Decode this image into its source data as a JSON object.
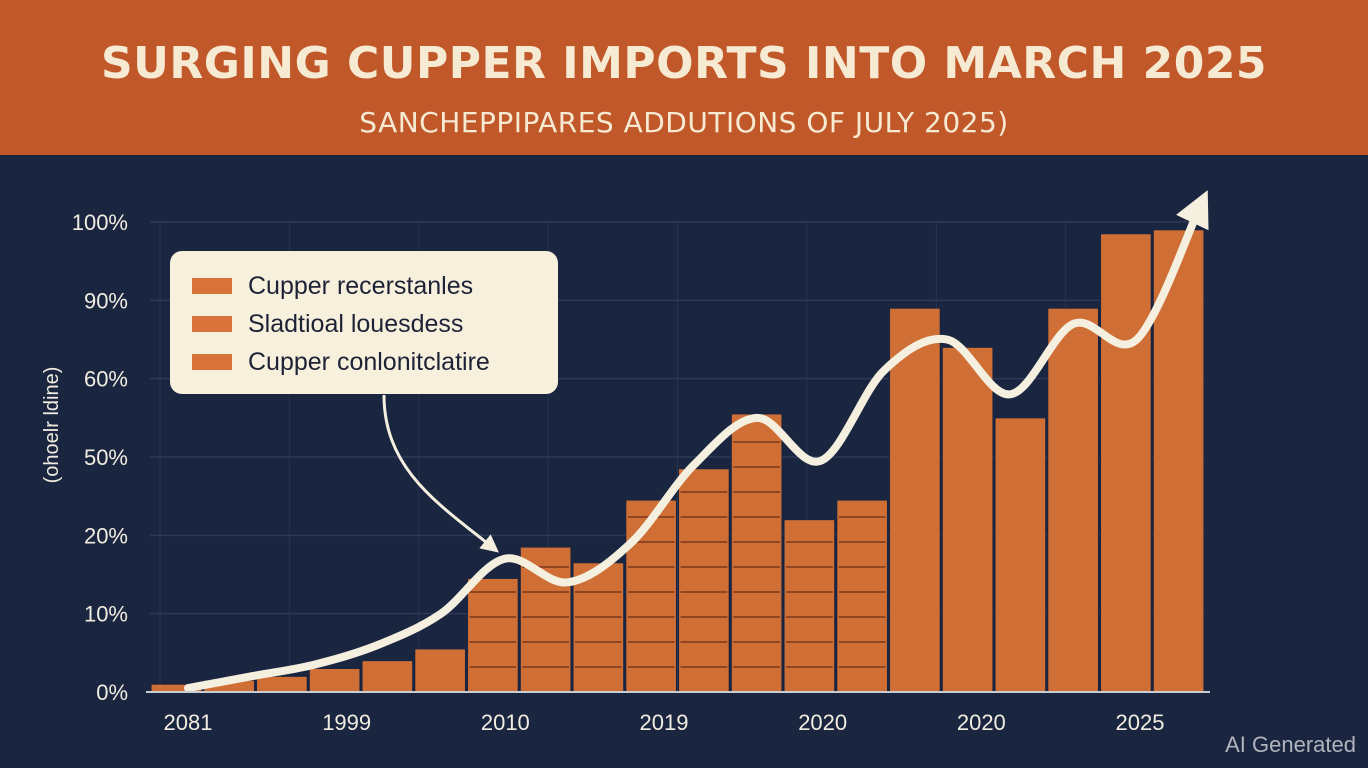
{
  "header": {
    "title": "SURGING CUPPER IMPORTS INTO MARCH 2025",
    "subtitle": "SANCHEPPIPARES ADDUTIONS OF JULY 2025)"
  },
  "legend": {
    "items": [
      {
        "label": "Cupper recerstanles"
      },
      {
        "label": "Sladtioal louesdess"
      },
      {
        "label": "Cupper conlonitclatire"
      }
    ]
  },
  "watermark": "AI Generated",
  "colors": {
    "banner": "#c0582a",
    "background": "#1a2540",
    "bar": "#d06f35",
    "line": "#f4efdf"
  },
  "chart_data": {
    "type": "bar",
    "ylabel": "(ohoelr ldine)",
    "y_tick_labels": [
      "0%",
      "10%",
      "20%",
      "50%",
      "60%",
      "90%",
      "100%"
    ],
    "x_tick_labels": [
      "2081",
      "1999",
      "2010",
      "2019",
      "2020",
      "2020",
      "2025"
    ],
    "ylim": [
      0,
      6
    ],
    "grid": true,
    "values": [
      0.1,
      0.15,
      0.2,
      0.3,
      0.4,
      0.55,
      1.45,
      1.85,
      1.65,
      2.45,
      2.85,
      3.55,
      2.2,
      2.45,
      4.9,
      4.4,
      3.5,
      4.9,
      5.85,
      5.9
    ],
    "trend_line": [
      0.05,
      0.2,
      0.35,
      0.6,
      1.0,
      1.7,
      1.4,
      1.9,
      2.9,
      3.5,
      2.95,
      4.1,
      4.5,
      3.8,
      4.7,
      4.5,
      6.2
    ]
  }
}
